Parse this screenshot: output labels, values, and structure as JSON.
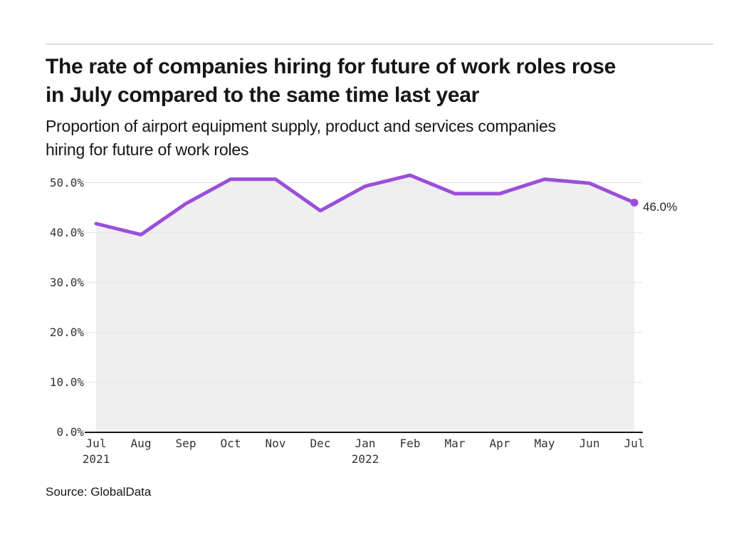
{
  "header": {
    "title_line1": "The rate of companies hiring for future of work roles rose",
    "title_line2": "in July compared to the same time last year",
    "subtitle_line1": "Proportion of airport equipment supply, product and services companies",
    "subtitle_line2": "hiring for future of work roles"
  },
  "source": {
    "text": "Source: GlobalData"
  },
  "chart_data": {
    "type": "line",
    "title": "The rate of companies hiring for future of work roles rose in July compared to the same time last year",
    "subtitle": "Proportion of airport equipment supply, product and services companies hiring for future of work roles",
    "x": [
      "Jul 2021",
      "Aug",
      "Sep",
      "Oct",
      "Nov",
      "Dec",
      "Jan 2022",
      "Feb",
      "Mar",
      "Apr",
      "May",
      "Jun",
      "Jul"
    ],
    "values": [
      41.8,
      39.6,
      45.8,
      50.7,
      50.7,
      44.4,
      49.3,
      51.5,
      47.8,
      47.8,
      50.7,
      49.9,
      46.0
    ],
    "y_ticks": [
      "0.0%",
      "10.0%",
      "20.0%",
      "30.0%",
      "40.0%",
      "50.0%"
    ],
    "ylim": [
      0,
      50
    ],
    "grid": true,
    "legend_position": "none",
    "end_label": "46.0%",
    "colors": {
      "line": "#9B4FD9",
      "area_fill": "#EFEFEF",
      "gridline": "#E3E3E3",
      "axis": "#161616"
    }
  }
}
